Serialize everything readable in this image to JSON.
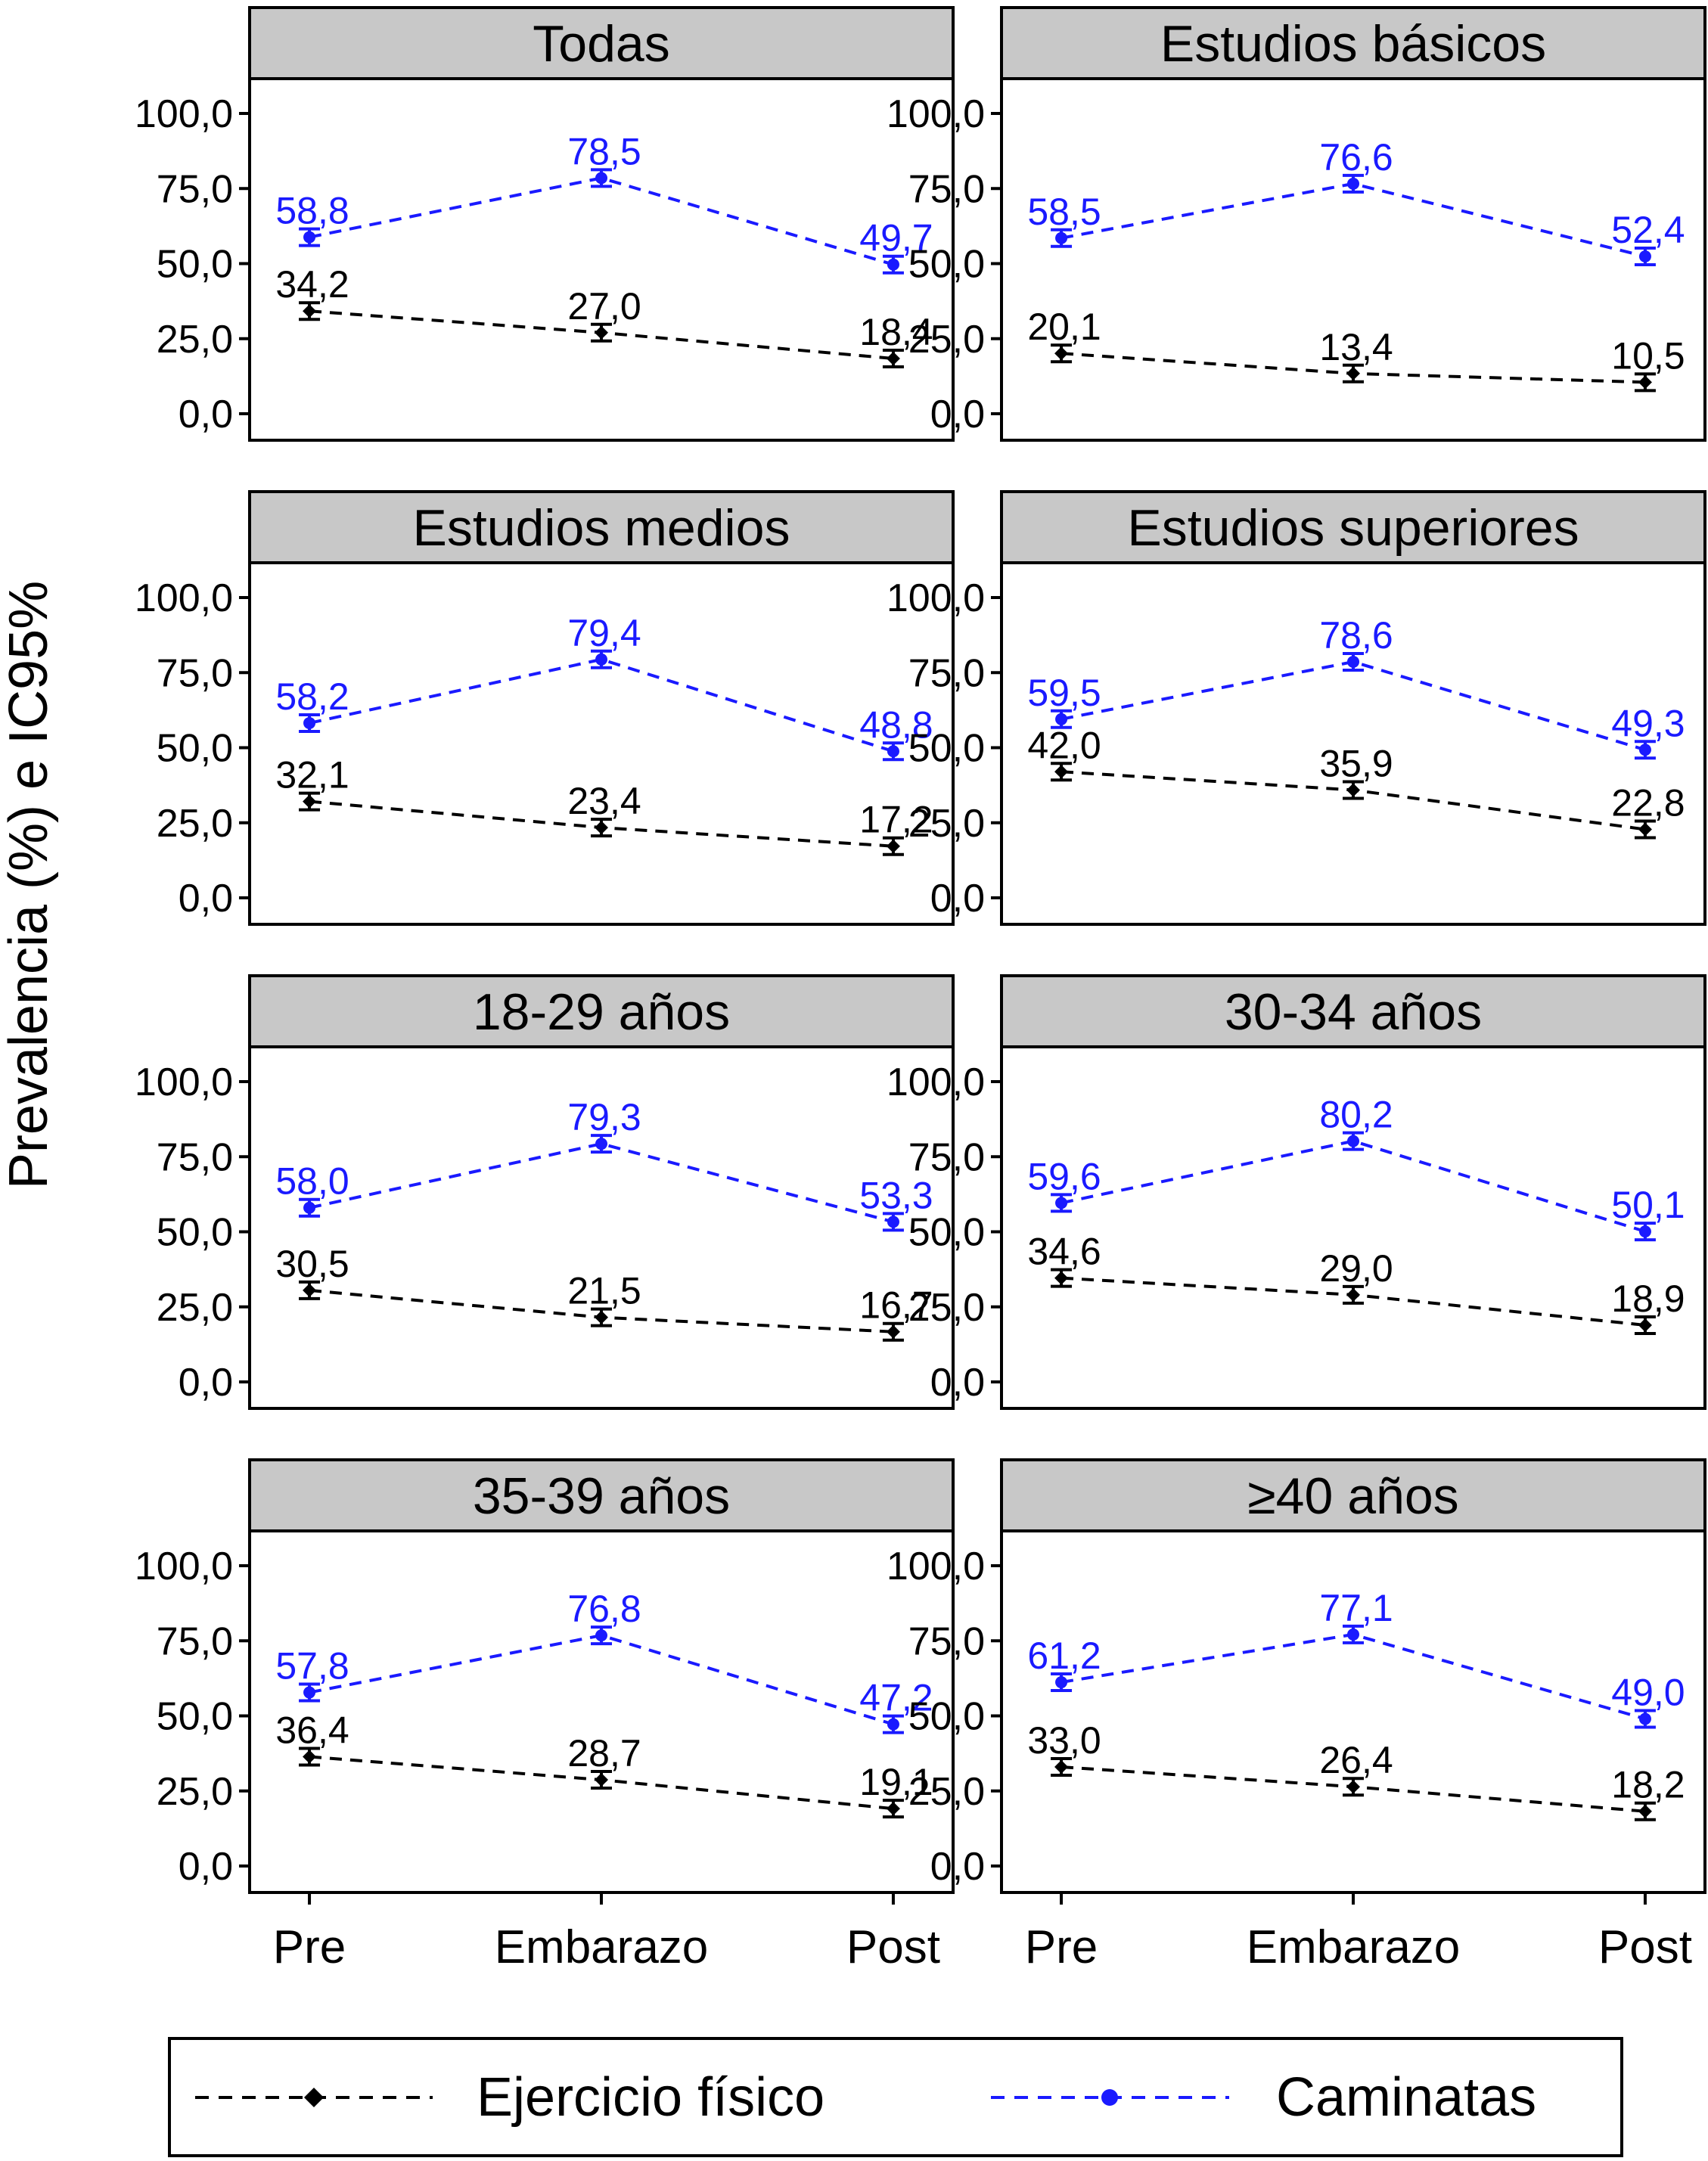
{
  "figure": {
    "y_axis_title": "Prevalencia (%) e IC95%",
    "x_categories": [
      "Pre",
      "Embarazo",
      "Post"
    ],
    "y_ticks": [
      "0,0",
      "25,0",
      "50,0",
      "75,0",
      "100,0"
    ],
    "legend": [
      {
        "label": "Ejercicio físico",
        "color": "#000000",
        "marker": "diamond",
        "line": "dashed"
      },
      {
        "label": "Caminatas",
        "color": "#1a1aff",
        "marker": "circle",
        "line": "dashed"
      }
    ],
    "colors": {
      "strip_bg": "#c8c8c8",
      "ejercicio": "#000000",
      "caminatas": "#1a1aff"
    }
  },
  "chart_data": [
    {
      "type": "line",
      "title": "Todas",
      "categories": [
        "Pre",
        "Embarazo",
        "Post"
      ],
      "ylim": [
        0,
        100
      ],
      "series": [
        {
          "name": "Ejercicio físico",
          "values": [
            34.2,
            27.0,
            18.4
          ],
          "labels": [
            "34,2",
            "27,0",
            "18,4"
          ]
        },
        {
          "name": "Caminatas",
          "values": [
            58.8,
            78.5,
            49.7
          ],
          "labels": [
            "58,8",
            "78,5",
            "49,7"
          ]
        }
      ]
    },
    {
      "type": "line",
      "title": "Estudios básicos",
      "categories": [
        "Pre",
        "Embarazo",
        "Post"
      ],
      "ylim": [
        0,
        100
      ],
      "series": [
        {
          "name": "Ejercicio físico",
          "values": [
            20.1,
            13.4,
            10.5
          ],
          "labels": [
            "20,1",
            "13,4",
            "10,5"
          ]
        },
        {
          "name": "Caminatas",
          "values": [
            58.5,
            76.6,
            52.4
          ],
          "labels": [
            "58,5",
            "76,6",
            "52,4"
          ]
        }
      ]
    },
    {
      "type": "line",
      "title": "Estudios medios",
      "categories": [
        "Pre",
        "Embarazo",
        "Post"
      ],
      "ylim": [
        0,
        100
      ],
      "series": [
        {
          "name": "Ejercicio físico",
          "values": [
            32.1,
            23.4,
            17.2
          ],
          "labels": [
            "32,1",
            "23,4",
            "17,2"
          ]
        },
        {
          "name": "Caminatas",
          "values": [
            58.2,
            79.4,
            48.8
          ],
          "labels": [
            "58,2",
            "79,4",
            "48,8"
          ]
        }
      ]
    },
    {
      "type": "line",
      "title": "Estudios superiores",
      "categories": [
        "Pre",
        "Embarazo",
        "Post"
      ],
      "ylim": [
        0,
        100
      ],
      "series": [
        {
          "name": "Ejercicio físico",
          "values": [
            42.0,
            35.9,
            22.8
          ],
          "labels": [
            "42,0",
            "35,9",
            "22,8"
          ]
        },
        {
          "name": "Caminatas",
          "values": [
            59.5,
            78.6,
            49.3
          ],
          "labels": [
            "59,5",
            "78,6",
            "49,3"
          ]
        }
      ]
    },
    {
      "type": "line",
      "title": "18-29 años",
      "categories": [
        "Pre",
        "Embarazo",
        "Post"
      ],
      "ylim": [
        0,
        100
      ],
      "series": [
        {
          "name": "Ejercicio físico",
          "values": [
            30.5,
            21.5,
            16.7
          ],
          "labels": [
            "30,5",
            "21,5",
            "16,7"
          ]
        },
        {
          "name": "Caminatas",
          "values": [
            58.0,
            79.3,
            53.3
          ],
          "labels": [
            "58,0",
            "79,3",
            "53,3"
          ]
        }
      ]
    },
    {
      "type": "line",
      "title": "30-34 años",
      "categories": [
        "Pre",
        "Embarazo",
        "Post"
      ],
      "ylim": [
        0,
        100
      ],
      "series": [
        {
          "name": "Ejercicio físico",
          "values": [
            34.6,
            29.0,
            18.9
          ],
          "labels": [
            "34,6",
            "29,0",
            "18,9"
          ]
        },
        {
          "name": "Caminatas",
          "values": [
            59.6,
            80.2,
            50.1
          ],
          "labels": [
            "59,6",
            "80,2",
            "50,1"
          ]
        }
      ]
    },
    {
      "type": "line",
      "title": "35-39 años",
      "categories": [
        "Pre",
        "Embarazo",
        "Post"
      ],
      "ylim": [
        0,
        100
      ],
      "series": [
        {
          "name": "Ejercicio físico",
          "values": [
            36.4,
            28.7,
            19.1
          ],
          "labels": [
            "36,4",
            "28,7",
            "19,1"
          ]
        },
        {
          "name": "Caminatas",
          "values": [
            57.8,
            76.8,
            47.2
          ],
          "labels": [
            "57,8",
            "76,8",
            "47,2"
          ]
        }
      ]
    },
    {
      "type": "line",
      "title": "≥40 años",
      "categories": [
        "Pre",
        "Embarazo",
        "Post"
      ],
      "ylim": [
        0,
        100
      ],
      "series": [
        {
          "name": "Ejercicio físico",
          "values": [
            33.0,
            26.4,
            18.2
          ],
          "labels": [
            "33,0",
            "26,4",
            "18,2"
          ]
        },
        {
          "name": "Caminatas",
          "values": [
            61.2,
            77.1,
            49.0
          ],
          "labels": [
            "61,2",
            "77,1",
            "49,0"
          ]
        }
      ]
    }
  ]
}
